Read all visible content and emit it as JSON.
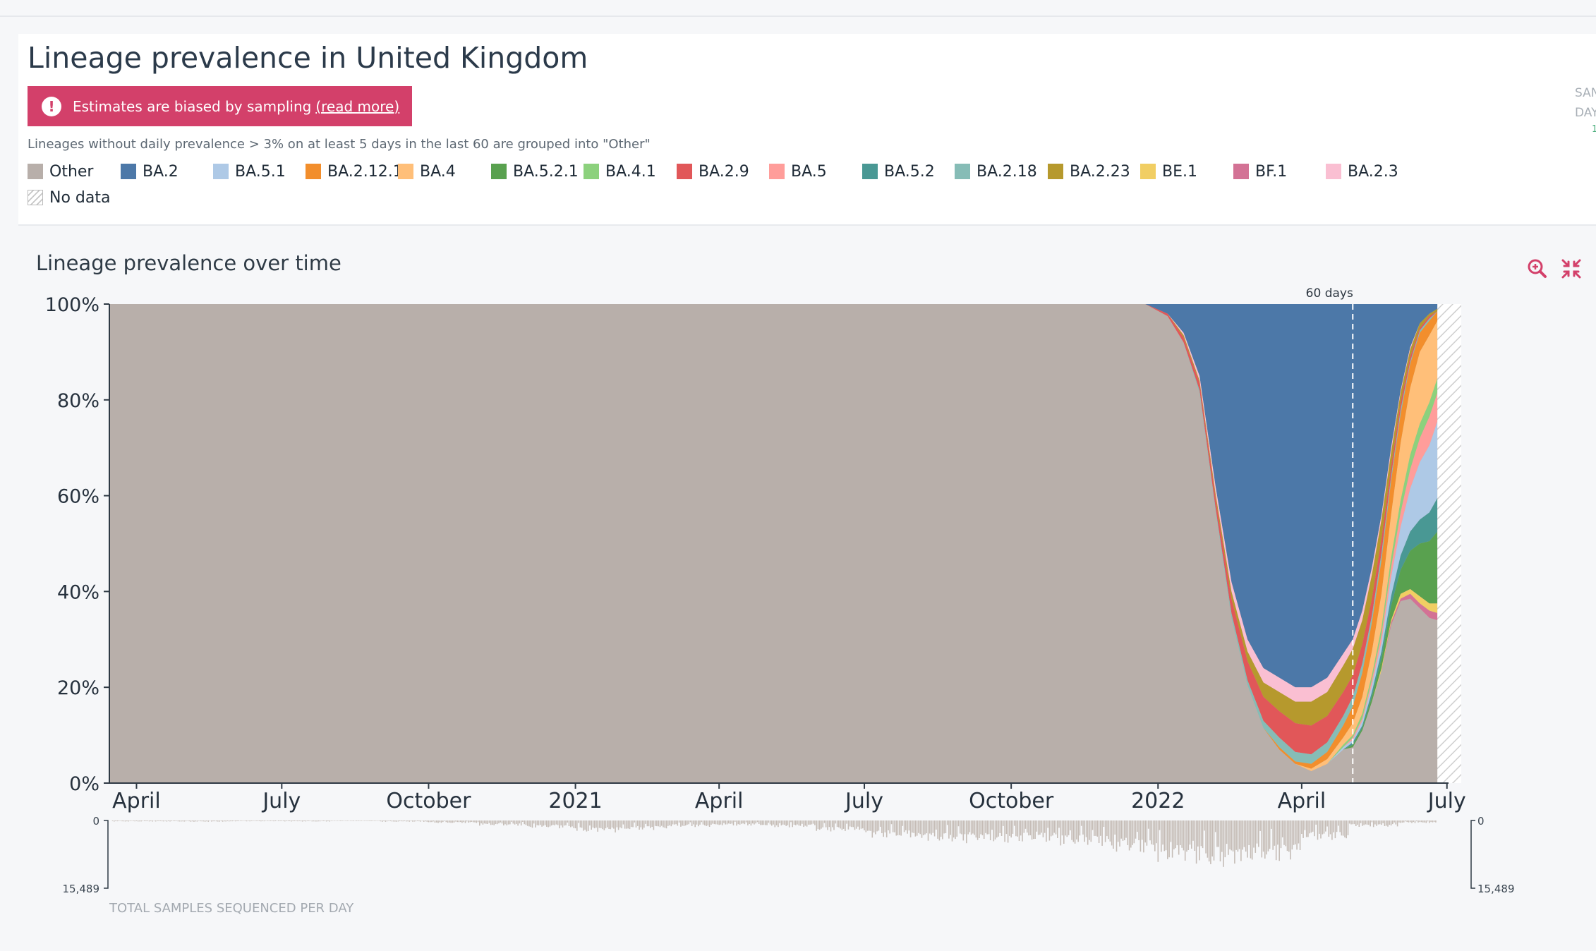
{
  "page": {
    "title": "Lineage prevalence in United Kingdom",
    "warning": {
      "text": "Estimates are biased by sampling",
      "link": "(read more)"
    },
    "note": "Lineages without daily prevalence > 3% on at least 5 days in the last 60 are grouped into \"Other\"",
    "side_labels": [
      "SAN",
      "DAY"
    ],
    "side_tick": "1"
  },
  "legend": [
    {
      "name": "Other",
      "color": "#b8afaa"
    },
    {
      "name": "BA.2",
      "color": "#4c78a8"
    },
    {
      "name": "BA.5.1",
      "color": "#aec9e6"
    },
    {
      "name": "BA.2.12.1",
      "color": "#f28e2c"
    },
    {
      "name": "BA.4",
      "color": "#ffbf79"
    },
    {
      "name": "BA.5.2.1",
      "color": "#59a14f"
    },
    {
      "name": "BA.4.1",
      "color": "#8cd17d"
    },
    {
      "name": "BA.2.9",
      "color": "#e15759"
    },
    {
      "name": "BA.5",
      "color": "#ff9d9a"
    },
    {
      "name": "BA.5.2",
      "color": "#499894"
    },
    {
      "name": "BA.2.18",
      "color": "#86bcb6"
    },
    {
      "name": "BA.2.23",
      "color": "#b6992d"
    },
    {
      "name": "BE.1",
      "color": "#f1ce63"
    },
    {
      "name": "BF.1",
      "color": "#d37295"
    },
    {
      "name": "BA.2.3",
      "color": "#fabfd2"
    },
    {
      "name": "No data",
      "color": "hatched"
    }
  ],
  "chart_title": "Lineage prevalence over time",
  "chart_controls": {
    "zoom_icon": "zoom-in-icon",
    "collapse_icon": "collapse-icon"
  },
  "chart_data": {
    "type": "area",
    "stacked": true,
    "title": "Lineage prevalence over time",
    "y_unit": "%",
    "ylim": [
      0,
      100
    ],
    "y_ticks": [
      "0%",
      "20%",
      "40%",
      "60%",
      "80%",
      "100%"
    ],
    "x_ticks": [
      "April",
      "July",
      "October",
      "2021",
      "April",
      "July",
      "October",
      "2022",
      "April",
      "July"
    ],
    "x_range": [
      "2020-03-15",
      "2022-07-02"
    ],
    "annotation": {
      "label": "60 days",
      "date": "2022-05-03"
    },
    "no_data_after": "2022-06-25",
    "x_dates": [
      "2021-12-24",
      "2022-01-07",
      "2022-01-17",
      "2022-01-27",
      "2022-02-06",
      "2022-02-16",
      "2022-02-26",
      "2022-03-08",
      "2022-03-18",
      "2022-03-28",
      "2022-04-07",
      "2022-04-17",
      "2022-04-27",
      "2022-05-03",
      "2022-05-09",
      "2022-05-15",
      "2022-05-21",
      "2022-05-27",
      "2022-06-02",
      "2022-06-08",
      "2022-06-14",
      "2022-06-20",
      "2022-06-25"
    ],
    "series": [
      {
        "name": "BA.2",
        "values": [
          0,
          2,
          6,
          15,
          38,
          58,
          70,
          76,
          78,
          80,
          80,
          78,
          73,
          70,
          64,
          55,
          44,
          30,
          18,
          9,
          4,
          2,
          1
        ]
      },
      {
        "name": "BA.2.3",
        "values": [
          0,
          0,
          0.5,
          1,
          1.5,
          2,
          2.5,
          3,
          3,
          3,
          3,
          3,
          2.5,
          2,
          2,
          1.5,
          1,
          1,
          0.5,
          0.5,
          0,
          0,
          0
        ]
      },
      {
        "name": "BA.2.23",
        "values": [
          0,
          0,
          0.5,
          0.5,
          1,
          1.5,
          2,
          3,
          4,
          4.5,
          5,
          5,
          5.5,
          5.5,
          5,
          5,
          4,
          3,
          2,
          1.5,
          1,
          0.5,
          0.5
        ]
      },
      {
        "name": "BA.2.9",
        "values": [
          0,
          0.5,
          1,
          1.5,
          2,
          3,
          4,
          5,
          5.5,
          6,
          6,
          5.5,
          5,
          4.5,
          4,
          3.5,
          3,
          2,
          1.5,
          1,
          0.5,
          0.5,
          0
        ]
      },
      {
        "name": "BA.2.18",
        "values": [
          0,
          0,
          0,
          0.5,
          0.5,
          1,
          1,
          1.5,
          2,
          2,
          2,
          2,
          2,
          2,
          2,
          1.5,
          1.5,
          1,
          1,
          0.5,
          0.5,
          0.5,
          0
        ]
      },
      {
        "name": "BA.2.12.1",
        "values": [
          0,
          0,
          0,
          0,
          0,
          0,
          0,
          0,
          0.5,
          0.5,
          1,
          1.5,
          2.5,
          3.5,
          5,
          6,
          7,
          7,
          6,
          5,
          4,
          3,
          2
        ]
      },
      {
        "name": "BA.4",
        "values": [
          0,
          0,
          0,
          0,
          0,
          0,
          0,
          0,
          0,
          0,
          0.5,
          1,
          1.5,
          2.5,
          3.5,
          5,
          7,
          9,
          12,
          14,
          15,
          14,
          12
        ]
      },
      {
        "name": "BA.4.1",
        "values": [
          0,
          0,
          0,
          0,
          0,
          0,
          0,
          0,
          0,
          0,
          0,
          0,
          0.5,
          0.5,
          1,
          1,
          1.5,
          2,
          2.5,
          3,
          3,
          3,
          3
        ]
      },
      {
        "name": "BA.5",
        "values": [
          0,
          0,
          0,
          0,
          0,
          0,
          0,
          0,
          0,
          0,
          0,
          0,
          0,
          0.5,
          0.5,
          1,
          1.5,
          2,
          3,
          4,
          5,
          6,
          6
        ]
      },
      {
        "name": "BA.5.1",
        "values": [
          0,
          0,
          0,
          0,
          0,
          0,
          0,
          0,
          0,
          0,
          0,
          0,
          0.5,
          0.5,
          1,
          1.5,
          2,
          4,
          6,
          9,
          12,
          14,
          16
        ]
      },
      {
        "name": "BA.5.2",
        "values": [
          0,
          0,
          0,
          0,
          0,
          0,
          0,
          0,
          0,
          0,
          0,
          0,
          0,
          0.5,
          0.5,
          1,
          1.5,
          2,
          3,
          4,
          5,
          6,
          7
        ]
      },
      {
        "name": "BA.5.2.1",
        "values": [
          0,
          0,
          0,
          0,
          0,
          0,
          0,
          0,
          0,
          0,
          0,
          0,
          0,
          0.5,
          0.5,
          1,
          2,
          3,
          5,
          8,
          11,
          13,
          15
        ]
      },
      {
        "name": "BE.1",
        "values": [
          0,
          0,
          0,
          0,
          0,
          0,
          0,
          0,
          0,
          0,
          0,
          0,
          0,
          0,
          0,
          0,
          0.5,
          0.5,
          1,
          1,
          1.5,
          1.5,
          2
        ]
      },
      {
        "name": "BF.1",
        "values": [
          0,
          0,
          0,
          0,
          0,
          0,
          0,
          0,
          0,
          0,
          0,
          0,
          0,
          0,
          0,
          0,
          0,
          0.5,
          0.5,
          1,
          1,
          1.5,
          1.5
        ]
      }
    ],
    "samples": {
      "label": "TOTAL SAMPLES SEQUENCED PER DAY",
      "max_label": "15,489",
      "min_label": "0",
      "max": 15489,
      "months": [
        "2020-04",
        "2020-05",
        "2020-06",
        "2020-07",
        "2020-08",
        "2020-09",
        "2020-10",
        "2020-11",
        "2020-12",
        "2021-01",
        "2021-02",
        "2021-03",
        "2021-04",
        "2021-05",
        "2021-06",
        "2021-07",
        "2021-08",
        "2021-09",
        "2021-10",
        "2021-11",
        "2021-12",
        "2022-01",
        "2022-02",
        "2022-03",
        "2022-04",
        "2022-05",
        "2022-06"
      ],
      "typical_per_day": [
        250,
        300,
        200,
        250,
        150,
        300,
        600,
        1200,
        1800,
        2800,
        2200,
        1500,
        1200,
        1600,
        2500,
        4000,
        5000,
        5200,
        5000,
        5800,
        7500,
        10000,
        11000,
        9500,
        4500,
        1500,
        600
      ]
    }
  }
}
